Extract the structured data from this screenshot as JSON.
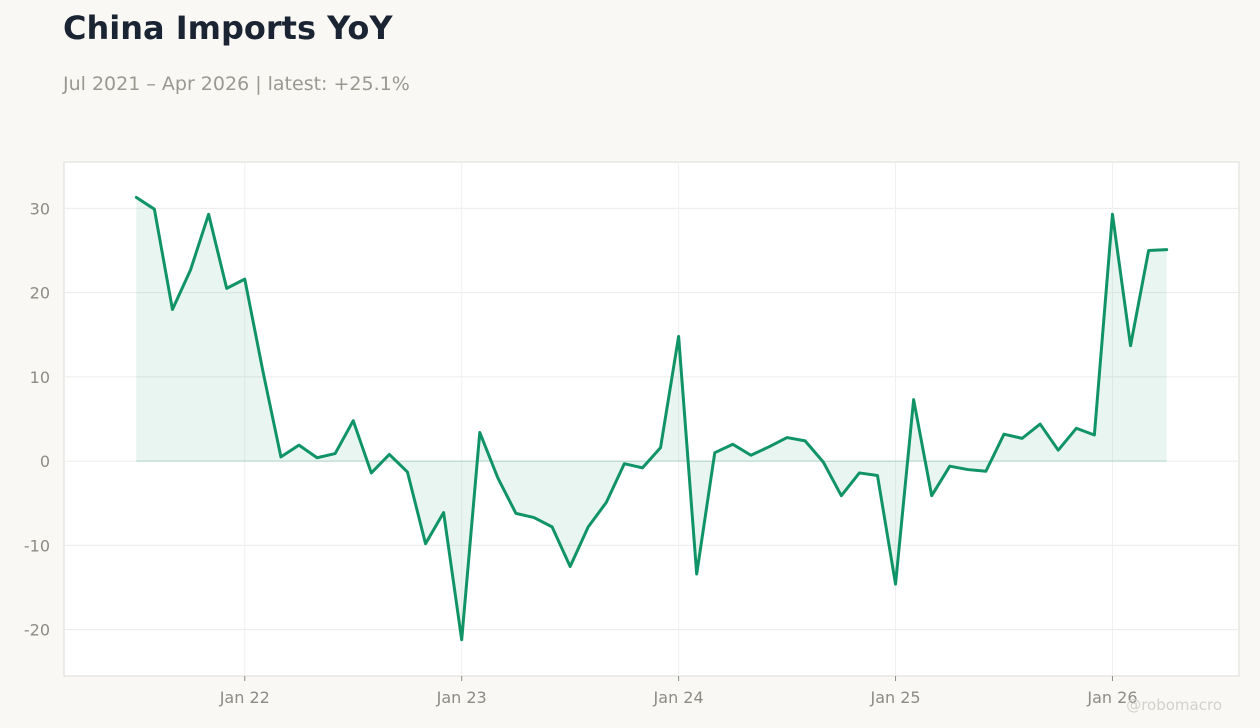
{
  "chart_data": {
    "type": "area",
    "title": "China Imports YoY",
    "subtitle": "Jul 2021 – Apr 2026 | latest: +25.1%",
    "xlabel": "",
    "ylabel": "",
    "y_ticks": [
      30,
      20,
      10,
      0,
      -10,
      -20
    ],
    "y_tick_labels": [
      "30",
      "20",
      "10",
      "0",
      "-10",
      "-20"
    ],
    "ylim": [
      -25.5,
      35.5
    ],
    "x_ticks": [
      {
        "label": "Jan 22",
        "date": "2022-01"
      },
      {
        "label": "Jan 23",
        "date": "2023-01"
      },
      {
        "label": "Jan 24",
        "date": "2024-01"
      },
      {
        "label": "Jan 25",
        "date": "2025-01"
      },
      {
        "label": "Jan 26",
        "date": "2026-01"
      }
    ],
    "xlim": [
      "2021-03",
      "2026-08"
    ],
    "grid": true,
    "line_color": "#109466",
    "fill_color": "#109466",
    "series": [
      {
        "x": [
          "2021-07",
          "2021-08",
          "2021-09",
          "2021-10",
          "2021-11",
          "2021-12",
          "2022-01",
          "2022-02",
          "2022-03",
          "2022-04",
          "2022-05",
          "2022-06",
          "2022-07",
          "2022-08",
          "2022-09",
          "2022-10",
          "2022-11",
          "2022-12",
          "2023-01",
          "2023-02",
          "2023-03",
          "2023-04",
          "2023-05",
          "2023-06",
          "2023-07",
          "2023-08",
          "2023-09",
          "2023-10",
          "2023-11",
          "2023-12",
          "2024-01",
          "2024-02",
          "2024-03",
          "2024-04",
          "2024-05",
          "2024-06",
          "2024-07",
          "2024-08",
          "2024-09",
          "2024-10",
          "2024-11",
          "2024-12",
          "2025-01",
          "2025-02",
          "2025-03",
          "2025-04",
          "2025-05",
          "2025-06",
          "2025-07",
          "2025-08",
          "2025-09",
          "2025-10",
          "2025-11",
          "2025-12",
          "2026-01",
          "2026-02",
          "2026-03",
          "2026-04"
        ],
        "values": [
          31.3,
          29.9,
          18.0,
          22.7,
          29.3,
          20.5,
          21.6,
          10.7,
          0.5,
          1.9,
          0.4,
          0.9,
          4.8,
          -1.4,
          0.8,
          -1.3,
          -9.8,
          -6.1,
          -21.2,
          3.4,
          -2.0,
          -6.2,
          -6.7,
          -7.8,
          -12.5,
          -7.8,
          -4.9,
          -0.3,
          -0.8,
          1.6,
          14.8,
          -13.4,
          1.0,
          2.0,
          0.7,
          1.7,
          2.8,
          2.4,
          -0.1,
          -4.1,
          -1.4,
          -1.7,
          -14.6,
          7.3,
          -4.1,
          -0.6,
          -1.0,
          -1.2,
          3.2,
          2.7,
          4.4,
          1.3,
          3.9,
          3.1,
          29.3,
          13.7,
          25.0,
          25.1
        ]
      }
    ]
  },
  "watermark": "@robomacro"
}
